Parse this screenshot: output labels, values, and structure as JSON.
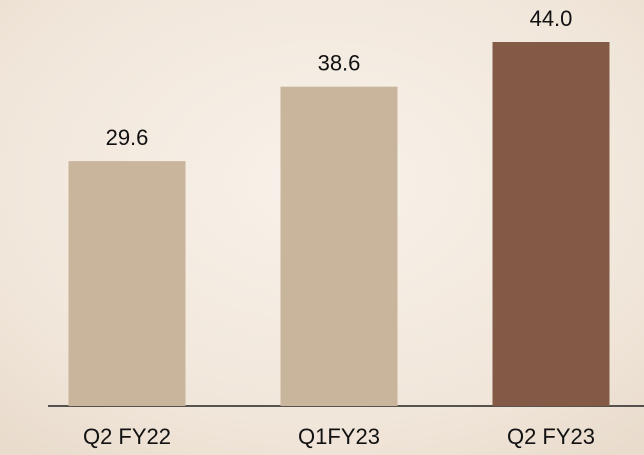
{
  "chart_data": {
    "type": "bar",
    "categories": [
      "Q2 FY22",
      "Q1FY23",
      "Q2 FY23"
    ],
    "values": [
      29.6,
      38.6,
      44.0
    ],
    "value_labels": [
      "29.6",
      "38.6",
      "44.0"
    ],
    "colors": [
      "#c9b59c",
      "#c9b59c",
      "#825a45"
    ]
  }
}
